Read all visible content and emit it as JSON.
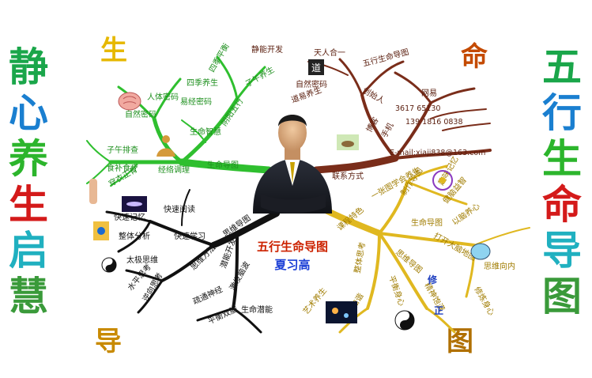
{
  "left_vertical": "静心养生启慧",
  "right_vertical": "五行生命导图",
  "corners": {
    "top_left": "生",
    "top_right": "命",
    "bottom_left": "导",
    "bottom_right": "图"
  },
  "center": {
    "title": "五行生命导图",
    "name": "夏习高"
  },
  "branches": {
    "life": {
      "label": "生命导图",
      "color": "#2fbf2f",
      "items": [
        "自然密码",
        "易经密码",
        "人体密码",
        "四季养生",
        "四季平衡",
        "子午养生",
        "生命智慧",
        "阴阳五行",
        "子午排查",
        "经络调理",
        "食补食疗",
        "穿衣正骨"
      ]
    },
    "contact": {
      "label": "联系方式",
      "color": "#7a2d1a",
      "items": [
        "静能开发",
        "天人合一",
        "自然密码",
        "道易养生",
        "五行生命导图",
        "创始人",
        "网易",
        "3617 65130",
        "139 1816 0838",
        "博客",
        "手机",
        "E-mail:xiaji838@163.com"
      ]
    },
    "thinking": {
      "label": "思维导图",
      "color": "#111111",
      "items": [
        "快速阅读",
        "快速记忆",
        "整体分析",
        "快速学习",
        "太极思维",
        "思维方法",
        "水平思考",
        "逆向思考",
        "疏通神经",
        "平衡双脑",
        "激发脑波",
        "生命潜能",
        "潜能开发"
      ]
    },
    "course": {
      "label": "课程特色",
      "color": "#e0b820",
      "items": [
        "一张图学会养生",
        "制作导图",
        "趣味记忆",
        "健脑益智",
        "以脑养心",
        "生命导图",
        "思维导图",
        "打开大脑地图",
        "思维向内",
        "修炼身心",
        "整体思考",
        "平衡身心",
        "精神饱满",
        "身心和谐",
        "艺术养生"
      ]
    }
  },
  "marks": {
    "xiu": "修",
    "zheng": "正"
  },
  "icons": [
    "yinyang-icon",
    "dao-icon",
    "brain-icon",
    "meditation-icon",
    "galaxy-icon",
    "lotus-icon"
  ]
}
